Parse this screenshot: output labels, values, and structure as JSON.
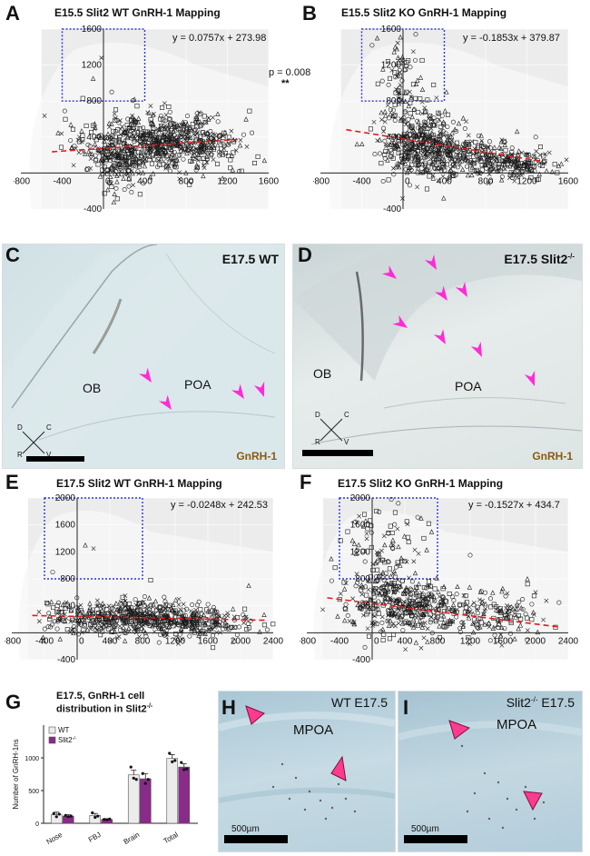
{
  "panels": {
    "A": {
      "letter": "A",
      "title": "E15.5 Slit2 WT GnRH-1 Mapping",
      "equation": "y = 0.0757x + 273.98"
    },
    "B": {
      "letter": "B",
      "title": "E15.5 Slit2 KO GnRH-1 Mapping",
      "equation": "y = -0.1853x + 379.87"
    },
    "C": {
      "letter": "C",
      "label": "E17.5 WT",
      "ob": "OB",
      "poa": "POA",
      "stain": "GnRH-1"
    },
    "D": {
      "letter": "D",
      "label": "E17.5 Slit2",
      "label_sup": "-/-",
      "ob": "OB",
      "poa": "POA",
      "stain": "GnRH-1"
    },
    "E": {
      "letter": "E",
      "title": "E17.5 Slit2 WT GnRH-1 Mapping",
      "equation": "y = -0.0248x + 242.53"
    },
    "F": {
      "letter": "F",
      "title": "E17.5 Slit2 KO GnRH-1 Mapping",
      "equation": "y = -0.1527x + 434.7"
    },
    "G": {
      "letter": "G",
      "title_line1": "E17.5, GnRH-1 cell",
      "title_line2": "distribution in Slit2",
      "title_sup": "-/-"
    },
    "H": {
      "letter": "H",
      "label": "WT E17.5",
      "region": "MPOA",
      "scale": "500µm"
    },
    "I": {
      "letter": "I",
      "label": "Slit2",
      "label_sup": "-/-",
      "label_suffix": " E17.5",
      "region": "MPOA",
      "scale": "500µm"
    }
  },
  "stats": {
    "p_value": "p = 0.008",
    "stars": "**"
  },
  "orientation": {
    "d": "D",
    "c": "C",
    "v": "V",
    "r": "R"
  },
  "chart_data": [
    {
      "type": "scatter",
      "panel": "A",
      "title": "E15.5 Slit2 WT GnRH-1 Mapping",
      "xlim": [
        -800,
        1600
      ],
      "ylim": [
        -400,
        1600
      ],
      "xticks": [
        -800,
        -400,
        0,
        400,
        800,
        1200,
        1600
      ],
      "yticks": [
        -400,
        400,
        800,
        1200,
        1600
      ],
      "trendline": {
        "slope": 0.0757,
        "intercept": 273.98,
        "x_range": [
          -500,
          1300
        ]
      },
      "highlight_box": {
        "x": [
          -400,
          400
        ],
        "y": [
          800,
          1600
        ]
      },
      "cloud": [
        {
          "cx": 500,
          "cy": 350,
          "sx": 350,
          "sy": 160,
          "n": 520
        },
        {
          "cx": 150,
          "cy": 150,
          "sx": 120,
          "sy": 150,
          "n": 180
        },
        {
          "cx": 900,
          "cy": 350,
          "sx": 220,
          "sy": 140,
          "n": 150
        }
      ],
      "outliers": [
        [
          -100,
          1050
        ],
        [
          -20,
          1280
        ],
        [
          80,
          900
        ],
        [
          -200,
          830
        ],
        [
          300,
          820
        ]
      ]
    },
    {
      "type": "scatter",
      "panel": "B",
      "title": "E15.5 Slit2 KO GnRH-1 Mapping",
      "xlim": [
        -800,
        1600
      ],
      "ylim": [
        -400,
        1600
      ],
      "xticks": [
        -800,
        -400,
        0,
        400,
        800,
        1200,
        1600
      ],
      "yticks": [
        -400,
        400,
        800,
        1200,
        1600
      ],
      "trendline": {
        "slope": -0.1853,
        "intercept": 379.87,
        "x_range": [
          -550,
          1350
        ]
      },
      "highlight_box": {
        "x": [
          -400,
          400
        ],
        "y": [
          800,
          1600
        ]
      },
      "cloud": [
        {
          "cx": 200,
          "cy": 300,
          "sx": 200,
          "sy": 170,
          "n": 420
        },
        {
          "cx": 750,
          "cy": 180,
          "sx": 280,
          "sy": 110,
          "n": 220
        },
        {
          "cx": 1150,
          "cy": 90,
          "sx": 150,
          "sy": 70,
          "n": 120
        },
        {
          "cx": 0,
          "cy": 900,
          "sx": 120,
          "sy": 300,
          "n": 90
        }
      ],
      "outliers": [
        [
          -250,
          1500
        ],
        [
          100,
          1350
        ],
        [
          -300,
          1420
        ],
        [
          50,
          1250
        ],
        [
          420,
          900
        ]
      ]
    },
    {
      "type": "scatter",
      "panel": "E",
      "title": "E17.5 Slit2 WT GnRH-1 Mapping",
      "xlim": [
        -800,
        2400
      ],
      "ylim": [
        -400,
        2000
      ],
      "xticks": [
        -800,
        -400,
        0,
        400,
        800,
        1200,
        1600,
        2000,
        2400
      ],
      "yticks": [
        -400,
        400,
        800,
        1200,
        1600,
        2000
      ],
      "trendline": {
        "slope": -0.0248,
        "intercept": 242.53,
        "x_range": [
          -550,
          2300
        ]
      },
      "highlight_box": {
        "x": [
          -400,
          800
        ],
        "y": [
          800,
          2000
        ]
      },
      "cloud": [
        {
          "cx": 700,
          "cy": 230,
          "sx": 380,
          "sy": 120,
          "n": 380
        },
        {
          "cx": 1500,
          "cy": 150,
          "sx": 350,
          "sy": 110,
          "n": 200
        },
        {
          "cx": 0,
          "cy": 200,
          "sx": 250,
          "sy": 150,
          "n": 90
        }
      ],
      "outliers": [
        [
          100,
          1300
        ],
        [
          200,
          1250
        ],
        [
          -300,
          900
        ],
        [
          900,
          780
        ],
        [
          2100,
          700
        ]
      ]
    },
    {
      "type": "scatter",
      "panel": "F",
      "title": "E17.5 Slit2 KO GnRH-1 Mapping",
      "xlim": [
        -800,
        2400
      ],
      "ylim": [
        -400,
        2000
      ],
      "xticks": [
        -800,
        -400,
        0,
        400,
        800,
        1200,
        1600,
        2000,
        2400
      ],
      "yticks": [
        -400,
        400,
        800,
        1200,
        1600,
        2000
      ],
      "trendline": {
        "slope": -0.1527,
        "intercept": 434.7,
        "x_range": [
          -550,
          2300
        ]
      },
      "highlight_box": {
        "x": [
          -400,
          800
        ],
        "y": [
          800,
          2000
        ]
      },
      "cloud": [
        {
          "cx": 350,
          "cy": 420,
          "sx": 330,
          "sy": 220,
          "n": 340
        },
        {
          "cx": 1300,
          "cy": 250,
          "sx": 420,
          "sy": 180,
          "n": 200
        },
        {
          "cx": 150,
          "cy": 1250,
          "sx": 250,
          "sy": 380,
          "n": 110
        }
      ],
      "outliers": [
        [
          1900,
          800
        ],
        [
          2000,
          600
        ],
        [
          1200,
          1150
        ],
        [
          -300,
          1500
        ],
        [
          600,
          1700
        ]
      ]
    },
    {
      "type": "bar",
      "panel": "G",
      "ylabel": "Number of GnRH-1ns",
      "categories": [
        "Nose",
        "FBJ",
        "Brain",
        "Total"
      ],
      "ylim": [
        0,
        1500
      ],
      "yticks": [
        0,
        500,
        1000
      ],
      "series": [
        {
          "name": "WT",
          "color": "#ececec",
          "values": [
            130,
            120,
            740,
            990
          ],
          "errors": [
            40,
            30,
            70,
            60
          ],
          "points": [
            [
              150,
              100,
              140
            ],
            [
              160,
              90,
              110
            ],
            [
              860,
              690,
              670
            ],
            [
              1070,
              940,
              960
            ]
          ]
        },
        {
          "name": "Slit2-/-",
          "name_display": "Slit2",
          "name_sup": "-/-",
          "color": "#8a2a8a",
          "values": [
            110,
            60,
            680,
            860
          ],
          "errors": [
            20,
            10,
            80,
            50
          ],
          "points": [
            [
              120,
              100,
              110
            ],
            [
              60,
              55,
              65
            ],
            [
              760,
              610,
              670
            ],
            [
              930,
              820,
              830
            ]
          ]
        }
      ]
    }
  ]
}
